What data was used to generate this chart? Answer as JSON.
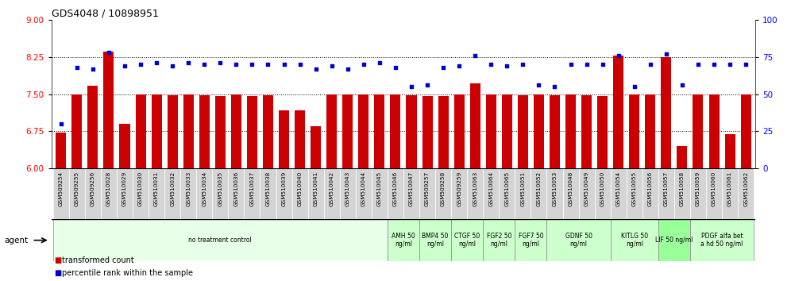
{
  "title": "GDS4048 / 10898951",
  "gsm_labels": [
    "GSM509254",
    "GSM509255",
    "GSM509256",
    "GSM510028",
    "GSM510029",
    "GSM510030",
    "GSM510031",
    "GSM510032",
    "GSM510033",
    "GSM510034",
    "GSM510035",
    "GSM510036",
    "GSM510037",
    "GSM510038",
    "GSM510039",
    "GSM510040",
    "GSM510041",
    "GSM510042",
    "GSM510043",
    "GSM510044",
    "GSM510045",
    "GSM510046",
    "GSM510047",
    "GSM509257",
    "GSM509258",
    "GSM509259",
    "GSM510063",
    "GSM510064",
    "GSM510065",
    "GSM510051",
    "GSM510052",
    "GSM510053",
    "GSM510048",
    "GSM510049",
    "GSM510050",
    "GSM510054",
    "GSM510055",
    "GSM510056",
    "GSM510057",
    "GSM510058",
    "GSM510059",
    "GSM510060",
    "GSM510061",
    "GSM510062"
  ],
  "bar_values": [
    6.72,
    7.5,
    7.67,
    8.35,
    6.9,
    7.5,
    7.5,
    7.48,
    7.5,
    7.47,
    7.46,
    7.5,
    7.46,
    7.47,
    7.18,
    7.17,
    6.85,
    7.5,
    7.49,
    7.5,
    7.5,
    7.5,
    7.47,
    7.46,
    7.46,
    7.5,
    7.72,
    7.5,
    7.5,
    7.47,
    7.5,
    7.47,
    7.5,
    7.47,
    7.46,
    8.28,
    7.5,
    7.5,
    8.25,
    6.45,
    7.5,
    7.5,
    6.7,
    7.5
  ],
  "blue_values": [
    30,
    68,
    67,
    78,
    69,
    70,
    71,
    69,
    71,
    70,
    71,
    70,
    70,
    70,
    70,
    70,
    67,
    69,
    67,
    70,
    71,
    68,
    55,
    56,
    68,
    69,
    76,
    70,
    69,
    70,
    56,
    55,
    70,
    70,
    70,
    76,
    55,
    70,
    77,
    56,
    70,
    70,
    70,
    70
  ],
  "bar_color": "#cc0000",
  "dot_color": "#0000cc",
  "ylim_left": [
    6.0,
    9.0
  ],
  "ylim_right": [
    0,
    100
  ],
  "yticks_left": [
    6.0,
    6.75,
    7.5,
    8.25,
    9.0
  ],
  "yticks_right": [
    0,
    25,
    50,
    75,
    100
  ],
  "hlines": [
    6.75,
    7.5,
    8.25
  ],
  "agent_groups": [
    {
      "label": "no treatment control",
      "start": 0,
      "end": 21,
      "color": "#e8ffe8"
    },
    {
      "label": "AMH 50\nng/ml",
      "start": 21,
      "end": 23,
      "color": "#ccffcc"
    },
    {
      "label": "BMP4 50\nng/ml",
      "start": 23,
      "end": 25,
      "color": "#ccffcc"
    },
    {
      "label": "CTGF 50\nng/ml",
      "start": 25,
      "end": 27,
      "color": "#ccffcc"
    },
    {
      "label": "FGF2 50\nng/ml",
      "start": 27,
      "end": 29,
      "color": "#ccffcc"
    },
    {
      "label": "FGF7 50\nng/ml",
      "start": 29,
      "end": 31,
      "color": "#ccffcc"
    },
    {
      "label": "GDNF 50\nng/ml",
      "start": 31,
      "end": 35,
      "color": "#ccffcc"
    },
    {
      "label": "KITLG 50\nng/ml",
      "start": 35,
      "end": 38,
      "color": "#ccffcc"
    },
    {
      "label": "LIF 50 ng/ml",
      "start": 38,
      "end": 40,
      "color": "#99ff99"
    },
    {
      "label": "PDGF alfa bet\na hd 50 ng/ml",
      "start": 40,
      "end": 44,
      "color": "#ccffcc"
    }
  ],
  "bg_color": "#ffffff",
  "plot_bg": "#ffffff",
  "legend_square_red": "#cc0000",
  "legend_square_blue": "#0000cc"
}
